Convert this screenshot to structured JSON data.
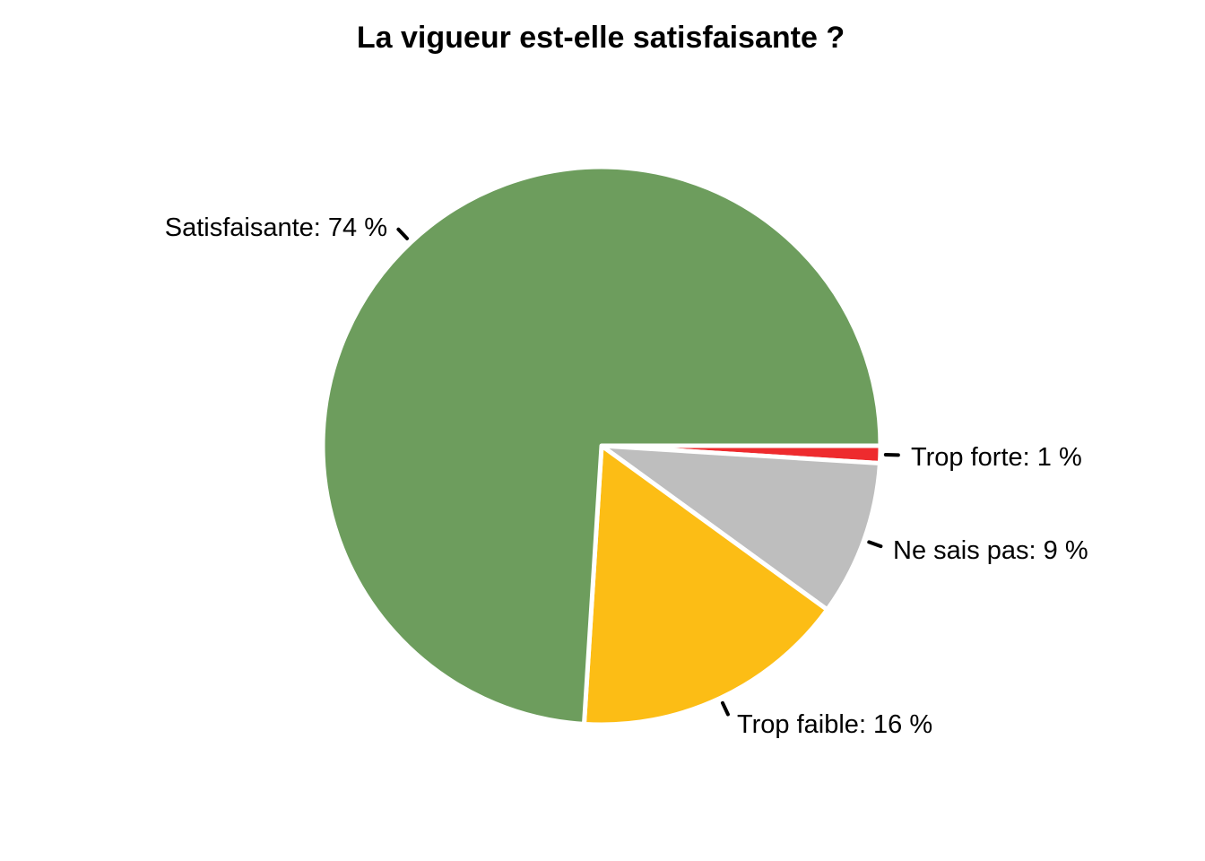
{
  "chart_data": {
    "type": "pie",
    "title": "La vigueur est-elle satisfaisante ?",
    "slices": [
      {
        "name": "Trop forte",
        "value": 1,
        "label": "Trop forte: 1 %",
        "color": "#ee2b2e"
      },
      {
        "name": "Ne sais pas",
        "value": 9,
        "label": "Ne sais pas: 9 %",
        "color": "#bebebe"
      },
      {
        "name": "Trop faible",
        "value": 16,
        "label": "Trop faible: 16 %",
        "color": "#fcbd15"
      },
      {
        "name": "Satisfaisante",
        "value": 74,
        "label": "Satisfaisante: 74 %",
        "color": "#6d9d5d"
      }
    ],
    "start_angle": "east",
    "direction": "clockwise",
    "legend": "none",
    "slice_border_color": "#ffffff"
  }
}
